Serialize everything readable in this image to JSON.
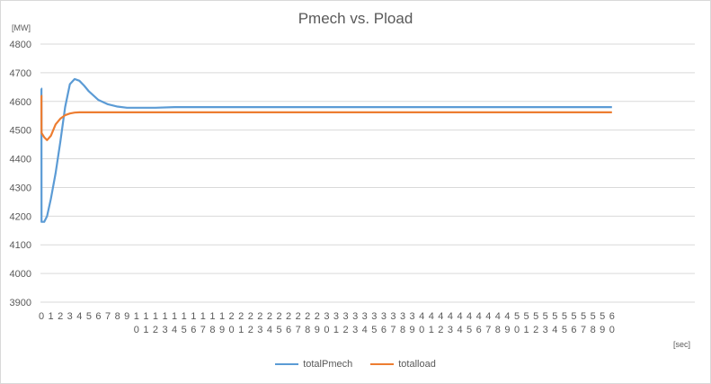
{
  "chart_data": {
    "type": "line",
    "title": "Pmech vs. Pload",
    "ylabel": "[MW]",
    "xlabel": "[sec]",
    "ylim": [
      3900,
      4800
    ],
    "yticks": [
      3900,
      4000,
      4100,
      4200,
      4300,
      4400,
      4500,
      4600,
      4700,
      4800
    ],
    "grid": true,
    "legend_position": "bottom",
    "x_categories": [
      "0",
      "1",
      "2",
      "3",
      "4",
      "5",
      "6",
      "7",
      "8",
      "9",
      "10",
      "11",
      "12",
      "13",
      "14",
      "15",
      "16",
      "17",
      "18",
      "19",
      "20",
      "21",
      "22",
      "23",
      "24",
      "25",
      "26",
      "27",
      "28",
      "29",
      "30",
      "31",
      "32",
      "33",
      "34",
      "35",
      "36",
      "37",
      "38",
      "39",
      "40",
      "41",
      "42",
      "43",
      "44",
      "45",
      "46",
      "47",
      "48",
      "49",
      "50",
      "51",
      "52",
      "53",
      "54",
      "55",
      "56",
      "57",
      "58",
      "59",
      "60"
    ],
    "x": [
      0,
      0.01,
      0.02,
      0.3,
      0.6,
      1.0,
      1.5,
      2.0,
      2.5,
      3.0,
      3.5,
      4.0,
      4.5,
      5.0,
      6.0,
      7.0,
      8.0,
      9.0,
      10.0,
      12.0,
      14.0,
      20.0,
      30.0,
      40.0,
      50.0,
      60.0
    ],
    "series": [
      {
        "name": "totalPmech",
        "color": "#5b9bd5",
        "values": [
          4645,
          4645,
          4180,
          4180,
          4200,
          4260,
          4350,
          4460,
          4580,
          4660,
          4678,
          4672,
          4655,
          4635,
          4605,
          4590,
          4582,
          4578,
          4578,
          4578,
          4580,
          4580,
          4580,
          4580,
          4580,
          4580
        ]
      },
      {
        "name": "totalload",
        "color": "#ed7d31",
        "values": [
          4620,
          4620,
          4490,
          4475,
          4465,
          4480,
          4520,
          4540,
          4552,
          4558,
          4561,
          4562,
          4562,
          4562,
          4562,
          4562,
          4562,
          4562,
          4562,
          4562,
          4562,
          4562,
          4562,
          4562,
          4562,
          4562
        ]
      }
    ]
  }
}
